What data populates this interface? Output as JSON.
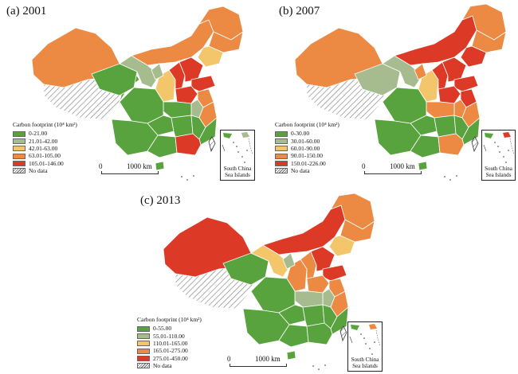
{
  "panels": [
    {
      "title": "(a) 2001",
      "legend_title": "Carbon footprint (10⁴ km²)",
      "classes": [
        {
          "range": "0-21.00",
          "color": "#58a33e"
        },
        {
          "range": "21.01-42.00",
          "color": "#a6bb8e"
        },
        {
          "range": "42.01-63.00",
          "color": "#f4c66c"
        },
        {
          "range": "63.01-105.00",
          "color": "#ec8a43"
        },
        {
          "range": "105.01-146.00",
          "color": "#dc3a26"
        }
      ],
      "no_data": "No data",
      "scale_left": "0",
      "scale_right": "1000 km",
      "inset_label": [
        "South China",
        "Sea Islands"
      ]
    },
    {
      "title": "(b) 2007",
      "legend_title": "Carbon footprint (10⁴ km²)",
      "classes": [
        {
          "range": "0-30.00",
          "color": "#58a33e"
        },
        {
          "range": "30.01-60.00",
          "color": "#a6bb8e"
        },
        {
          "range": "60.01-90.00",
          "color": "#f4c66c"
        },
        {
          "range": "90.01-150.00",
          "color": "#ec8a43"
        },
        {
          "range": "150.01-226.00",
          "color": "#dc3a26"
        }
      ],
      "no_data": "No data",
      "scale_left": "0",
      "scale_right": "1000 km",
      "inset_label": [
        "South China",
        "Sea Islands"
      ]
    },
    {
      "title": "(c) 2013",
      "legend_title": "Carbon footprint (10⁴ km²)",
      "classes": [
        {
          "range": "0-55.00",
          "color": "#58a33e"
        },
        {
          "range": "55.01-110.00",
          "color": "#a6bb8e"
        },
        {
          "range": "110.01-165.00",
          "color": "#f4c66c"
        },
        {
          "range": "165.01-275.00",
          "color": "#ec8a43"
        },
        {
          "range": "275.01-450.00",
          "color": "#dc3a26"
        }
      ],
      "no_data": "No data",
      "scale_left": "0",
      "scale_right": "1000 km",
      "inset_label": [
        "South China",
        "Sea Islands"
      ]
    }
  ]
}
